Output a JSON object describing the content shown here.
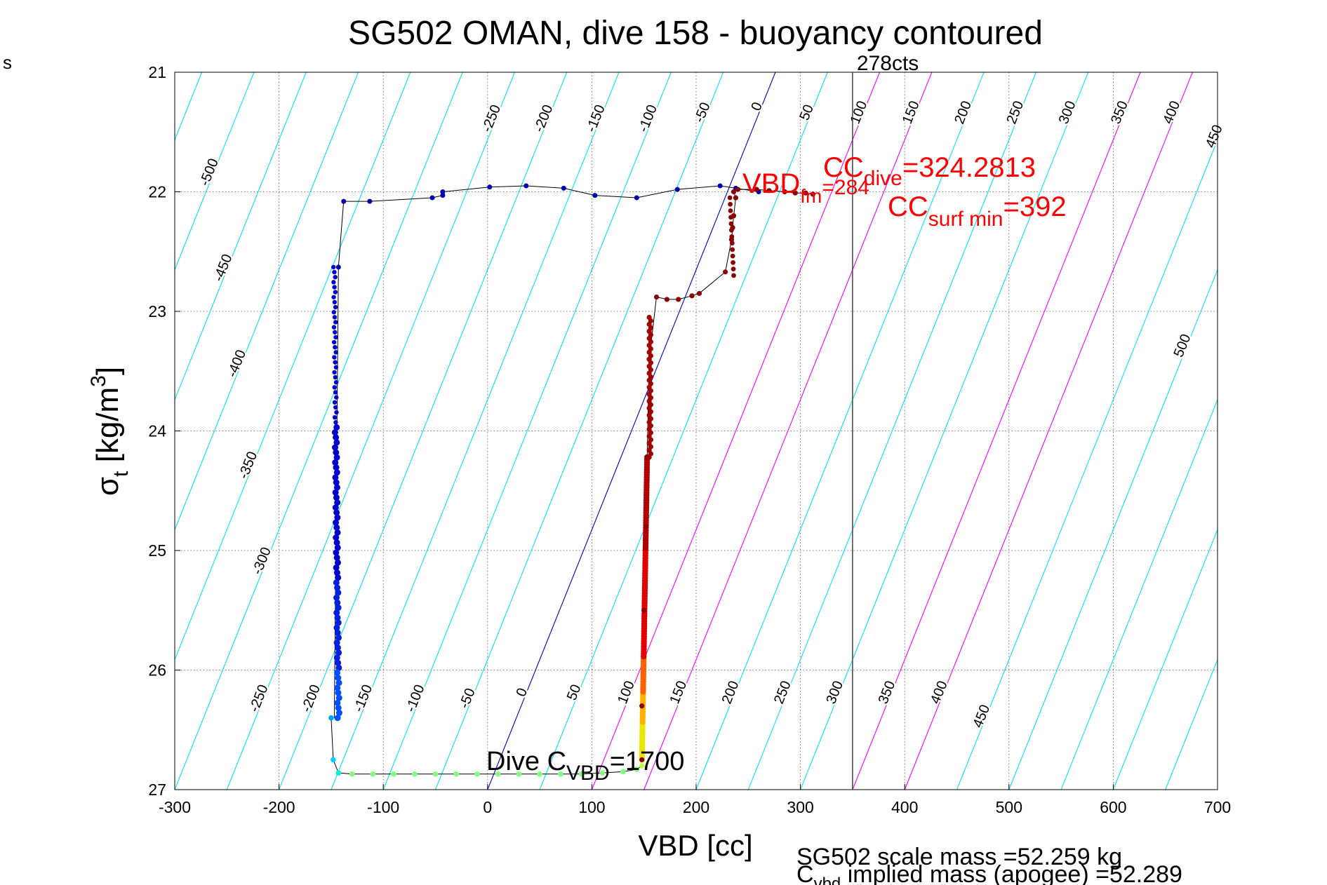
{
  "page": {
    "corner_mark": "s"
  },
  "chart_data": {
    "type": "scatter",
    "title": "SG502 OMAN, dive 158 - buoyancy contoured",
    "xlabel": "VBD [cc]",
    "ylabel": "σ_t [kg/m^3]",
    "xlim": [
      -300,
      700
    ],
    "ylim": [
      21,
      27
    ],
    "y_reversed": true,
    "grid": true,
    "x_ticks": [
      -300,
      -200,
      -100,
      0,
      100,
      200,
      300,
      400,
      500,
      600,
      700
    ],
    "y_ticks": [
      21,
      22,
      23,
      24,
      25,
      26,
      27
    ],
    "contours": {
      "slope_cc_per_sigma": -46,
      "ref_sigma": 27,
      "levels": [
        -550,
        -500,
        -450,
        -400,
        -350,
        -300,
        -250,
        -200,
        -150,
        -100,
        -50,
        0,
        50,
        100,
        150,
        200,
        250,
        300,
        350,
        400,
        450,
        500,
        550,
        600,
        650,
        700
      ],
      "highlight": [
        {
          "level": 0,
          "color": "#0000cc"
        },
        {
          "level": 100,
          "color": "#ff00ff"
        },
        {
          "level": 150,
          "color": "#ff00ff"
        },
        {
          "level": 350,
          "color": "#ff00ff"
        },
        {
          "level": 400,
          "color": "#ff00ff"
        }
      ],
      "default_color": "#00e5ff",
      "labels": [
        {
          "text": "-250",
          "level": -250,
          "sigma": 21.4
        },
        {
          "text": "-200",
          "level": -200,
          "sigma": 21.4
        },
        {
          "text": "-150",
          "level": -150,
          "sigma": 21.4
        },
        {
          "text": "-100",
          "level": -100,
          "sigma": 21.4
        },
        {
          "text": "-50",
          "level": -50,
          "sigma": 21.35
        },
        {
          "text": "0",
          "level": 0,
          "sigma": 21.3
        },
        {
          "text": "50",
          "level": 50,
          "sigma": 21.35
        },
        {
          "text": "100",
          "level": 100,
          "sigma": 21.35
        },
        {
          "text": "150",
          "level": 150,
          "sigma": 21.35
        },
        {
          "text": "200",
          "level": 200,
          "sigma": 21.35
        },
        {
          "text": "250",
          "level": 250,
          "sigma": 21.35
        },
        {
          "text": "300",
          "level": 300,
          "sigma": 21.35
        },
        {
          "text": "350",
          "level": 350,
          "sigma": 21.35
        },
        {
          "text": "400",
          "level": 400,
          "sigma": 21.35
        },
        {
          "text": "450",
          "level": 450,
          "sigma": 21.55
        },
        {
          "text": "-500",
          "level": -500,
          "sigma": 21.85
        },
        {
          "text": "-450",
          "level": -450,
          "sigma": 22.65
        },
        {
          "text": "-400",
          "level": -400,
          "sigma": 23.45
        },
        {
          "text": "-350",
          "level": -350,
          "sigma": 24.3
        },
        {
          "text": "-300",
          "level": -300,
          "sigma": 25.1
        },
        {
          "text": "500",
          "level": 500,
          "sigma": 23.3
        },
        {
          "text": "-250",
          "level": -250,
          "sigma": 26.25
        },
        {
          "text": "-200",
          "level": -200,
          "sigma": 26.25
        },
        {
          "text": "-150",
          "level": -150,
          "sigma": 26.25
        },
        {
          "text": "-100",
          "level": -100,
          "sigma": 26.25
        },
        {
          "text": "-50",
          "level": -50,
          "sigma": 26.25
        },
        {
          "text": "0",
          "level": 0,
          "sigma": 26.2
        },
        {
          "text": "50",
          "level": 50,
          "sigma": 26.2
        },
        {
          "text": "100",
          "level": 100,
          "sigma": 26.2
        },
        {
          "text": "150",
          "level": 150,
          "sigma": 26.2
        },
        {
          "text": "200",
          "level": 200,
          "sigma": 26.2
        },
        {
          "text": "250",
          "level": 250,
          "sigma": 26.2
        },
        {
          "text": "300",
          "level": 300,
          "sigma": 26.2
        },
        {
          "text": "350",
          "level": 350,
          "sigma": 26.2
        },
        {
          "text": "400",
          "level": 400,
          "sigma": 26.2
        },
        {
          "text": "450",
          "level": 450,
          "sigma": 26.4
        }
      ]
    },
    "vertical_line": {
      "x": 350,
      "label": "278cts"
    },
    "dive_series": {
      "name": "dive",
      "x": [
        -143,
        -138,
        -113,
        -53,
        -43,
        -43,
        2,
        37,
        73,
        103,
        143,
        182,
        223,
        238,
        260
      ],
      "y": [
        22.63,
        22.08,
        22.08,
        22.05,
        22.03,
        22.0,
        21.96,
        21.95,
        21.97,
        22.03,
        22.05,
        21.98,
        21.95,
        21.97,
        22.0
      ],
      "color": "#0000aa"
    },
    "descent_deep": {
      "x_start": -147,
      "x_end": -143,
      "sigma_start": 22.63,
      "sigma_end": 26.4,
      "color": "#0000cc"
    },
    "bottom_series": {
      "x": [
        -150,
        -148,
        -143,
        -130,
        -110,
        -90,
        -70,
        -50,
        -30,
        -10,
        10,
        30,
        50,
        70,
        90,
        110,
        130,
        143,
        148
      ],
      "y": [
        26.4,
        26.75,
        26.86,
        26.87,
        26.87,
        26.87,
        26.87,
        26.87,
        26.87,
        26.87,
        26.87,
        26.87,
        26.87,
        26.87,
        26.87,
        26.86,
        26.85,
        26.83,
        26.8
      ],
      "colors": [
        "#00a0ff",
        "#00d0ff",
        "#00f0e0",
        "#80ff80",
        "#80ff80",
        "#80ff80",
        "#80ff80",
        "#80ff80",
        "#80ff80",
        "#80ff80",
        "#80ff80",
        "#80ff80",
        "#80ff80",
        "#80ff80",
        "#80ff80",
        "#80ff80",
        "#80ff80",
        "#80ff80",
        "#c0ff40"
      ]
    },
    "climb_series": {
      "x": [
        148,
        148,
        150,
        152,
        153,
        155,
        162,
        172,
        183,
        196,
        203,
        228,
        234,
        235,
        236,
        238,
        236,
        240,
        258,
        270,
        285,
        295,
        305,
        312
      ],
      "y": [
        26.75,
        26.3,
        25.5,
        24.8,
        24.22,
        23.4,
        22.88,
        22.9,
        22.9,
        22.87,
        22.85,
        22.67,
        22.4,
        22.3,
        22.2,
        22.05,
        22.0,
        21.98,
        21.98,
        21.99,
        22.0,
        22.01,
        22.01,
        22.02
      ],
      "color": "#8b0000"
    },
    "annotations": {
      "vbd_label": "VBD",
      "vbd_sub": "fm",
      "vbd_val": "=284",
      "cc_label": "CC",
      "cc_sub": "dive",
      "cc_val": "=324.2813",
      "cc_surf_label": "CC",
      "cc_surf_sub": "surf min",
      "cc_surf_val": "=392",
      "dive_c_label": "Dive C",
      "dive_c_sub": "VBD",
      "dive_c_val": "=1700",
      "scale_mass": "SG502 scale mass =52.259 kg",
      "implied_label": "C",
      "implied_sub": "vbd",
      "implied_mass": " implied mass (apogee) =52.289"
    }
  }
}
